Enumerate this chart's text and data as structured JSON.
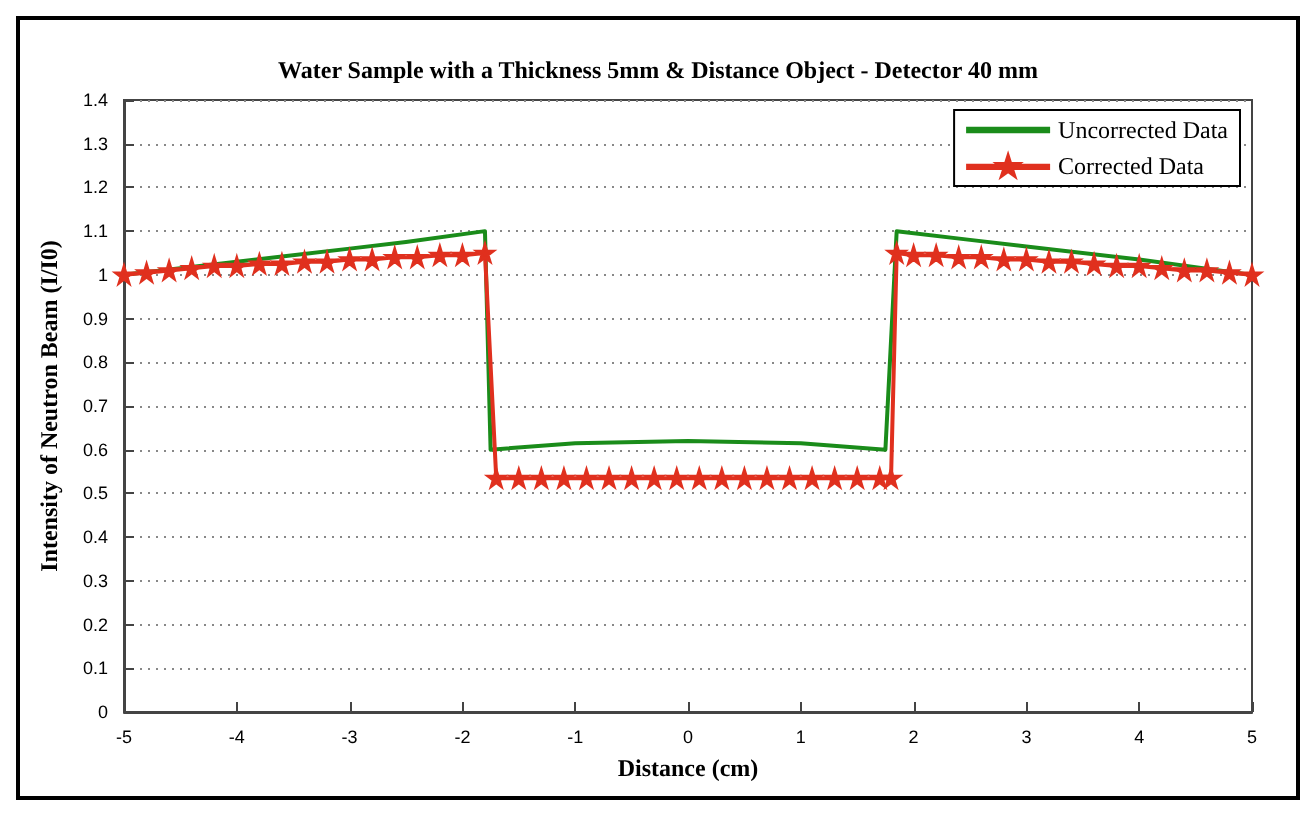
{
  "chart_data": {
    "type": "line",
    "title": "Water Sample with a Thickness 5mm & Distance Object - Detector 40 mm",
    "xlabel": "Distance (cm)",
    "ylabel": "Intensity of Neutron Beam (I/I0)",
    "xlim": [
      -5,
      5
    ],
    "xticks": [
      -5,
      -4,
      -3,
      -2,
      -1,
      0,
      1,
      2,
      3,
      4,
      5
    ],
    "ylim": [
      0,
      1.4
    ],
    "yticks": [
      0,
      0.1,
      0.2,
      0.3,
      0.4,
      0.5,
      0.6,
      0.7,
      0.8,
      0.9,
      1,
      1.1,
      1.2,
      1.3,
      1.4
    ],
    "grid": "y",
    "legend": "top right",
    "line_style": "solid",
    "series": [
      {
        "name": "Uncorrected Data",
        "color": "#1a8c1a",
        "marker": "none",
        "x": [
          -5,
          -4,
          -3,
          -2.5,
          -1.8,
          -1.75,
          -1,
          0,
          1,
          1.75,
          1.85,
          2.5,
          3,
          4,
          5
        ],
        "values": [
          1.0,
          1.03,
          1.06,
          1.075,
          1.1,
          0.6,
          0.615,
          0.62,
          0.615,
          0.6,
          1.1,
          1.08,
          1.065,
          1.035,
          1.0
        ]
      },
      {
        "name": "Corrected Data",
        "color": "#e0301e",
        "marker": "star",
        "x": [
          -5,
          -4.8,
          -4.6,
          -4.4,
          -4.2,
          -4,
          -3.8,
          -3.6,
          -3.4,
          -3.2,
          -3,
          -2.8,
          -2.6,
          -2.4,
          -2.2,
          -2,
          -1.8,
          -1.7,
          -1.5,
          -1.3,
          -1.1,
          -0.9,
          -0.7,
          -0.5,
          -0.3,
          -0.1,
          0.1,
          0.3,
          0.5,
          0.7,
          0.9,
          1.1,
          1.3,
          1.5,
          1.7,
          1.8,
          1.85,
          2,
          2.2,
          2.4,
          2.6,
          2.8,
          3,
          3.2,
          3.4,
          3.6,
          3.8,
          4,
          4.2,
          4.4,
          4.6,
          4.8,
          5
        ],
        "values": [
          1.0,
          1.005,
          1.01,
          1.015,
          1.02,
          1.02,
          1.025,
          1.025,
          1.03,
          1.03,
          1.035,
          1.035,
          1.04,
          1.04,
          1.045,
          1.045,
          1.05,
          0.535,
          0.535,
          0.535,
          0.535,
          0.535,
          0.535,
          0.535,
          0.535,
          0.535,
          0.535,
          0.535,
          0.535,
          0.535,
          0.535,
          0.535,
          0.535,
          0.535,
          0.535,
          0.535,
          1.05,
          1.045,
          1.045,
          1.04,
          1.04,
          1.035,
          1.035,
          1.03,
          1.03,
          1.025,
          1.02,
          1.02,
          1.015,
          1.01,
          1.01,
          1.005,
          1.0
        ]
      }
    ]
  }
}
